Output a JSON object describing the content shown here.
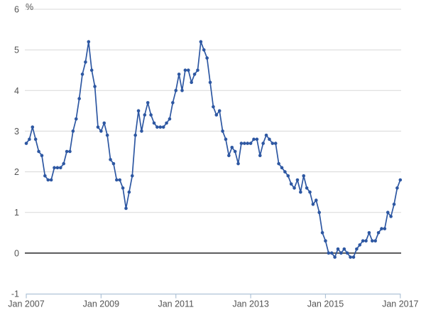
{
  "page": {
    "background": "#ffffff"
  },
  "chart_data": {
    "type": "line",
    "title": "",
    "ylabel": "%",
    "xlabel": "",
    "ylim": [
      -1,
      6
    ],
    "grid": true,
    "legend_position": "none",
    "marker": "circle",
    "frequency": "monthly",
    "x_start_label": "Jan 2007",
    "x_end_label": "Jan 2017",
    "y_ticks": [
      6,
      5,
      4,
      3,
      2,
      1,
      0,
      -1
    ],
    "x_ticks": [
      {
        "index": 0,
        "label": "Jan 2007"
      },
      {
        "index": 24,
        "label": "Jan 2009"
      },
      {
        "index": 48,
        "label": "Jan 2011"
      },
      {
        "index": 72,
        "label": "Jan 2013"
      },
      {
        "index": 96,
        "label": "Jan 2015"
      },
      {
        "index": 120,
        "label": "Jan 2017"
      }
    ],
    "values": [
      2.7,
      2.8,
      3.1,
      2.8,
      2.5,
      2.4,
      1.9,
      1.8,
      1.8,
      2.1,
      2.1,
      2.1,
      2.2,
      2.5,
      2.5,
      3.0,
      3.3,
      3.8,
      4.4,
      4.7,
      5.2,
      4.5,
      4.1,
      3.1,
      3.0,
      3.2,
      2.9,
      2.3,
      2.2,
      1.8,
      1.8,
      1.6,
      1.1,
      1.5,
      1.9,
      2.9,
      3.5,
      3.0,
      3.4,
      3.7,
      3.4,
      3.2,
      3.1,
      3.1,
      3.1,
      3.2,
      3.3,
      3.7,
      4.0,
      4.4,
      4.0,
      4.5,
      4.5,
      4.2,
      4.4,
      4.5,
      5.2,
      5.0,
      4.8,
      4.2,
      3.6,
      3.4,
      3.5,
      3.0,
      2.8,
      2.4,
      2.6,
      2.5,
      2.2,
      2.7,
      2.7,
      2.7,
      2.7,
      2.8,
      2.8,
      2.4,
      2.7,
      2.9,
      2.8,
      2.7,
      2.7,
      2.2,
      2.1,
      2.0,
      1.9,
      1.7,
      1.6,
      1.8,
      1.5,
      1.9,
      1.6,
      1.5,
      1.2,
      1.3,
      1.0,
      0.5,
      0.3,
      0.0,
      0.0,
      -0.1,
      0.1,
      0.0,
      0.1,
      0.0,
      -0.1,
      -0.1,
      0.1,
      0.2,
      0.3,
      0.3,
      0.5,
      0.3,
      0.3,
      0.5,
      0.6,
      0.6,
      1.0,
      0.9,
      1.2,
      1.6,
      1.8
    ],
    "colors": {
      "line": "#2d57a2",
      "marker": "#2d57a2",
      "grid": "#d8d8d8",
      "zero_line": "#58585a",
      "axis": "#afc3d7",
      "text": "#545454"
    }
  }
}
